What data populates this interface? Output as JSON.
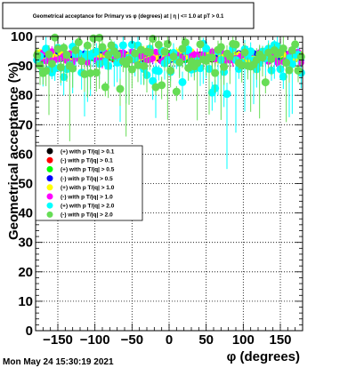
{
  "chart_data": {
    "type": "scatter",
    "title": "Geometrical acceptance for Primary vs φ (degrees) at | η | <= 1.0 at pT > 0.1",
    "xlabel": "φ (degrees)",
    "ylabel": "Geometrical acceptance (%)",
    "xlim": [
      -180,
      180
    ],
    "ylim": [
      0,
      100
    ],
    "x_ticks": [
      -150,
      -100,
      -50,
      0,
      50,
      100,
      150
    ],
    "y_ticks": [
      0,
      10,
      20,
      30,
      40,
      50,
      60,
      70,
      80,
      90,
      100
    ],
    "grid": true,
    "legend_position": "middle-left",
    "footer_date": "Mon May 24 15:30:19 2021",
    "series": [
      {
        "name": "(+) with p T/|q| > 0.1",
        "color": "#000000",
        "marker": "circle",
        "y_mean": 93.0,
        "spread": 1.0,
        "err": 1.5
      },
      {
        "name": "(-) with p T/|q| > 0.1",
        "color": "#ff0000",
        "marker": "circle",
        "y_mean": 93.0,
        "spread": 1.0,
        "err": 1.5
      },
      {
        "name": "(+) with p T/|q| > 0.5",
        "color": "#00ff00",
        "marker": "circle",
        "y_mean": 93.2,
        "spread": 1.2,
        "err": 2.0
      },
      {
        "name": "(-) with p T/|q| > 0.5",
        "color": "#0000ff",
        "marker": "circle",
        "y_mean": 93.2,
        "spread": 1.2,
        "err": 2.0
      },
      {
        "name": "(+) with p T/|q| > 1.0",
        "color": "#ffff00",
        "marker": "circle",
        "y_mean": 93.5,
        "spread": 1.8,
        "err": 2.5
      },
      {
        "name": "(-) with p T/|q| > 1.0",
        "color": "#ff00ff",
        "marker": "circle",
        "y_mean": 93.0,
        "spread": 2.0,
        "err": 2.5
      },
      {
        "name": "(+) with p T/|q| > 2.0",
        "color": "#00ffff",
        "marker": "circle",
        "y_mean": 92.5,
        "spread": 5.0,
        "err": 4.5
      },
      {
        "name": "(-) with p T/|q| > 2.0",
        "color": "#66dd55",
        "marker": "circle",
        "y_mean": 92.5,
        "spread": 5.0,
        "err": 4.5
      }
    ]
  }
}
